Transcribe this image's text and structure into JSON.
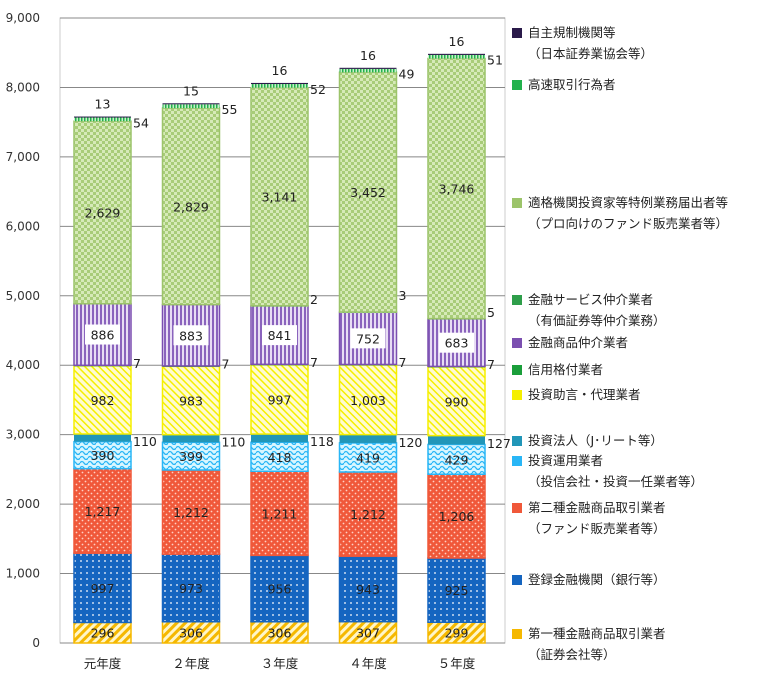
{
  "chart_data": {
    "type": "bar",
    "stacked": true,
    "categories": [
      "元年度",
      "２年度",
      "３年度",
      "４年度",
      "５年度"
    ],
    "ylim": [
      0,
      9000
    ],
    "yticks": [
      "0",
      "1,000",
      "2,000",
      "3,000",
      "4,000",
      "5,000",
      "6,000",
      "7,000",
      "8,000",
      "9,000"
    ],
    "grid": true,
    "legend_position": "right",
    "series": [
      {
        "name": "第一種金融商品取引業者",
        "sub": "（証券会社等）",
        "values": [
          296,
          306,
          306,
          307,
          299
        ],
        "labels": [
          "296",
          "306",
          "306",
          "307",
          "299"
        ],
        "color": "#f5b800",
        "label_mode": "inside"
      },
      {
        "name": "登録金融機関（銀行等）",
        "values": [
          997,
          973,
          956,
          943,
          925
        ],
        "labels": [
          "997",
          "973",
          "956",
          "943",
          "925"
        ],
        "color": "#1565c0",
        "label_mode": "inside"
      },
      {
        "name": "第二種金融商品取引業者",
        "sub": "（ファンド販売業者等）",
        "values": [
          1217,
          1212,
          1211,
          1212,
          1206
        ],
        "labels": [
          "1,217",
          "1,212",
          "1,211",
          "1,212",
          "1,206"
        ],
        "color": "#f0583a",
        "label_mode": "inside"
      },
      {
        "name": "投資運用業者",
        "sub": "（投信会社・投資一任業者等）",
        "values": [
          390,
          399,
          418,
          419,
          429
        ],
        "labels": [
          "390",
          "399",
          "418",
          "419",
          "429"
        ],
        "color": "#29b6f6",
        "label_mode": "inside"
      },
      {
        "name": "投資法人（J･リート等）",
        "values": [
          110,
          110,
          118,
          120,
          127
        ],
        "labels": [
          "110",
          "110",
          "118",
          "120",
          "127"
        ],
        "color": "#2196b8",
        "label_mode": "right"
      },
      {
        "name": "投資助言・代理業者",
        "values": [
          982,
          983,
          997,
          1003,
          990
        ],
        "labels": [
          "982",
          "983",
          "997",
          "1,003",
          "990"
        ],
        "color": "#f5ef00",
        "label_mode": "inside"
      },
      {
        "name": "信用格付業者",
        "values": [
          7,
          7,
          7,
          7,
          7
        ],
        "labels": [
          "7",
          "7",
          "7",
          "7",
          "7"
        ],
        "color": "#1a9e3a",
        "label_mode": "right"
      },
      {
        "name": "金融商品仲介業者",
        "values": [
          886,
          883,
          841,
          752,
          683
        ],
        "labels": [
          "886",
          "883",
          "841",
          "752",
          "683"
        ],
        "color": "#7b4fb0",
        "label_mode": "inside-box"
      },
      {
        "name": "金融サービス仲介業者",
        "sub": "（有価証券等仲介業務）",
        "values": [
          0,
          0,
          2,
          3,
          5
        ],
        "labels": [
          "",
          "",
          "2",
          "3",
          "5"
        ],
        "color": "#2e9e4a",
        "label_mode": "right"
      },
      {
        "name": "適格機関投資家等特例業務届出者等",
        "sub": "（プロ向けのファンド販売業者等）",
        "values": [
          2629,
          2829,
          3141,
          3452,
          3746
        ],
        "labels": [
          "2,629",
          "2,829",
          "3,141",
          "3,452",
          "3,746"
        ],
        "color": "#9cc46a",
        "label_mode": "inside"
      },
      {
        "name": "高速取引行為者",
        "values": [
          54,
          55,
          52,
          49,
          51
        ],
        "labels": [
          "54",
          "55",
          "52",
          "49",
          "51"
        ],
        "color": "#22b14c",
        "label_mode": "right"
      },
      {
        "name": "自主規制機関等",
        "sub": "（日本証券業協会等）",
        "values": [
          13,
          15,
          16,
          16,
          16
        ],
        "labels": [
          "13",
          "15",
          "16",
          "16",
          "16"
        ],
        "color": "#2a1a4a",
        "label_mode": "top"
      }
    ]
  }
}
